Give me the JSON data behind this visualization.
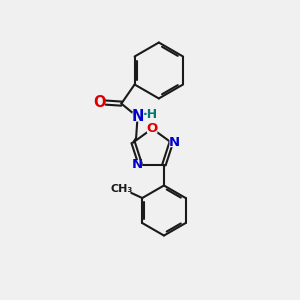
{
  "bg_color": "#f0f0f0",
  "bond_color": "#1a1a1a",
  "bond_width": 1.5,
  "dbo": 0.06,
  "atom_colors": {
    "O": "#dd0000",
    "N": "#0000cc",
    "H": "#007777",
    "C": "#1a1a1a"
  },
  "fs": 9.5
}
